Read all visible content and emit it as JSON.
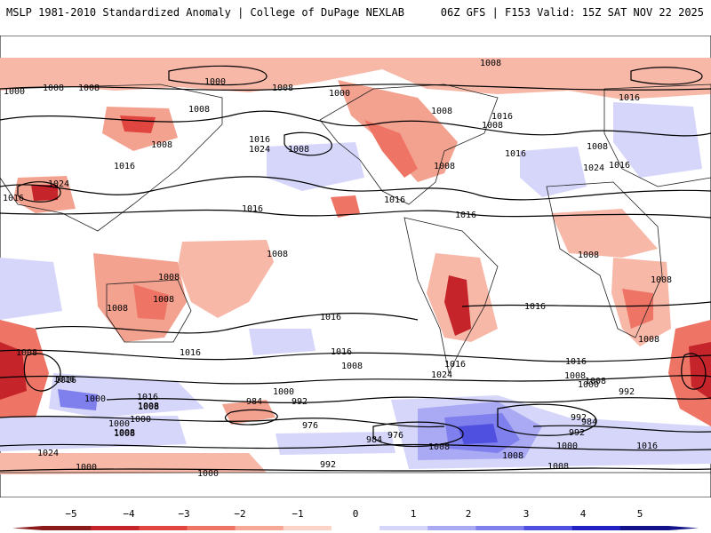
{
  "header": {
    "left": "MSLP 1981-2010 Standardized Anomaly | College of DuPage NEXLAB",
    "right": "06Z GFS | F153 Valid: 15Z SAT NOV 22 2025"
  },
  "map": {
    "variable": "MSLP standardized anomaly with isobars (hPa)",
    "isobar_labels": [
      "1000",
      "1008",
      "1008",
      "1000",
      "1008",
      "1008",
      "1000",
      "1008",
      "1016",
      "1016",
      "1024",
      "1008",
      "1016",
      "1024",
      "1008",
      "1016",
      "1008",
      "1016",
      "1016",
      "1008",
      "1024",
      "1016",
      "1008",
      "1016",
      "1008",
      "1016",
      "1016",
      "1008",
      "1016",
      "1008",
      "1008",
      "1008",
      "1008",
      "1016",
      "1008",
      "1016",
      "1016",
      "1016",
      "1008",
      "1016",
      "1024",
      "1008",
      "1016",
      "1000",
      "1008",
      "1000",
      "992",
      "1008",
      "1000",
      "992",
      "1008",
      "984",
      "992",
      "976",
      "1000",
      "1024",
      "984",
      "976",
      "992",
      "1008",
      "1000",
      "1008",
      "1000",
      "992",
      "984",
      "1008",
      "1016",
      "1008",
      "1000",
      "1000",
      "1016",
      "1008",
      "1016",
      "1008",
      "1008"
    ]
  },
  "colorbar": {
    "ticks": [
      "−5",
      "−4",
      "−3",
      "−2",
      "−1",
      "0",
      "1",
      "2",
      "3",
      "4",
      "5"
    ],
    "colors": [
      "#8b1a1a",
      "#c4242a",
      "#e0453f",
      "#ee7566",
      "#f7a896",
      "#fcd3c7",
      "#ffffff",
      "#d6d6fb",
      "#a9a9f4",
      "#7f7fee",
      "#4f4fe0",
      "#2222c4",
      "#12128a"
    ]
  }
}
